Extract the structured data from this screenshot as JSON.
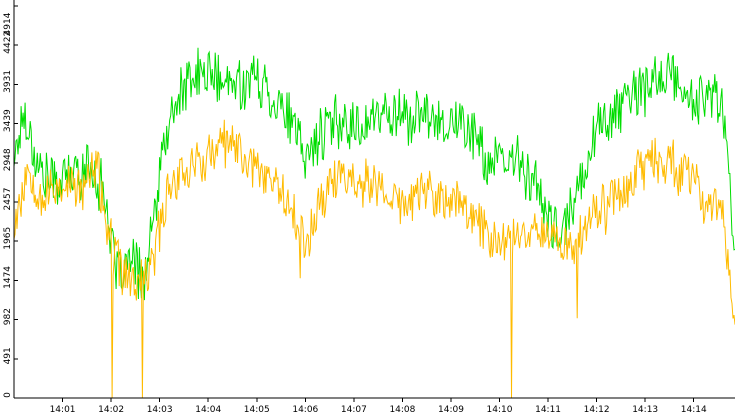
{
  "chart_data": {
    "type": "line",
    "title": "",
    "xlabel": "",
    "ylabel": "",
    "ylim": [
      0,
      4914
    ],
    "y_ticks": [
      0,
      491,
      982,
      1474,
      1965,
      2457,
      2948,
      3439,
      3931,
      4422,
      4914
    ],
    "x_range_minutes": [
      0,
      14.85
    ],
    "x_tick_labels": [
      "14:01",
      "14:02",
      "14:03",
      "14:04",
      "14:05",
      "14:06",
      "14:07",
      "14:08",
      "14:09",
      "14:10",
      "14:11",
      "14:12",
      "14:13",
      "14:14"
    ],
    "x_tick_values_minutes": [
      1,
      2,
      3,
      4,
      5,
      6,
      7,
      8,
      9,
      10,
      11,
      12,
      13,
      14
    ],
    "grid": false,
    "legend": "none",
    "samples_per_minute": 48,
    "series": [
      {
        "color": "#00dd00",
        "anchors": [
          [
            0.0,
            3000
          ],
          [
            0.2,
            3600
          ],
          [
            0.5,
            2900
          ],
          [
            0.8,
            2700
          ],
          [
            1.2,
            2800
          ],
          [
            1.6,
            2900
          ],
          [
            1.9,
            2500
          ],
          [
            2.1,
            1500
          ],
          [
            2.4,
            1700
          ],
          [
            2.7,
            1500
          ],
          [
            2.9,
            2300
          ],
          [
            3.1,
            3200
          ],
          [
            3.4,
            3800
          ],
          [
            3.7,
            4000
          ],
          [
            4.0,
            4100
          ],
          [
            4.3,
            3900
          ],
          [
            4.6,
            3950
          ],
          [
            5.0,
            4000
          ],
          [
            5.3,
            3800
          ],
          [
            5.6,
            3600
          ],
          [
            6.0,
            3000
          ],
          [
            6.3,
            3300
          ],
          [
            6.7,
            3500
          ],
          [
            7.0,
            3400
          ],
          [
            7.4,
            3500
          ],
          [
            7.8,
            3600
          ],
          [
            8.2,
            3500
          ],
          [
            8.6,
            3550
          ],
          [
            9.0,
            3450
          ],
          [
            9.4,
            3400
          ],
          [
            9.7,
            3000
          ],
          [
            10.0,
            2900
          ],
          [
            10.4,
            3000
          ],
          [
            10.8,
            2600
          ],
          [
            11.0,
            2200
          ],
          [
            11.3,
            2000
          ],
          [
            11.6,
            2600
          ],
          [
            12.0,
            3400
          ],
          [
            12.4,
            3600
          ],
          [
            12.8,
            3800
          ],
          [
            13.1,
            3900
          ],
          [
            13.4,
            4100
          ],
          [
            13.7,
            3900
          ],
          [
            14.0,
            3700
          ],
          [
            14.3,
            3800
          ],
          [
            14.6,
            3700
          ],
          [
            14.85,
            1800
          ]
        ],
        "noise": 300,
        "seed": 17
      },
      {
        "color": "#ffbb00",
        "anchors": [
          [
            0.0,
            2200
          ],
          [
            0.3,
            2900
          ],
          [
            0.6,
            2500
          ],
          [
            1.0,
            2700
          ],
          [
            1.4,
            2600
          ],
          [
            1.7,
            2900
          ],
          [
            2.0,
            1900
          ],
          [
            2.2,
            1600
          ],
          [
            2.5,
            1400
          ],
          [
            2.8,
            1600
          ],
          [
            3.0,
            2100
          ],
          [
            3.2,
            2700
          ],
          [
            3.6,
            2900
          ],
          [
            4.0,
            3000
          ],
          [
            4.4,
            3200
          ],
          [
            4.8,
            3000
          ],
          [
            5.2,
            2800
          ],
          [
            5.6,
            2600
          ],
          [
            6.0,
            1900
          ],
          [
            6.3,
            2500
          ],
          [
            6.7,
            2800
          ],
          [
            7.2,
            2700
          ],
          [
            7.6,
            2600
          ],
          [
            8.0,
            2400
          ],
          [
            8.4,
            2600
          ],
          [
            8.8,
            2500
          ],
          [
            9.2,
            2400
          ],
          [
            9.6,
            2200
          ],
          [
            10.0,
            1900
          ],
          [
            10.4,
            2100
          ],
          [
            10.8,
            2200
          ],
          [
            11.1,
            2000
          ],
          [
            11.5,
            1900
          ],
          [
            11.8,
            2200
          ],
          [
            12.2,
            2400
          ],
          [
            12.6,
            2700
          ],
          [
            13.0,
            2900
          ],
          [
            13.4,
            3000
          ],
          [
            13.8,
            2800
          ],
          [
            14.2,
            2500
          ],
          [
            14.6,
            2300
          ],
          [
            14.85,
            900
          ]
        ],
        "noise": 280,
        "dips": [
          [
            2.02,
            0
          ],
          [
            2.65,
            0
          ],
          [
            10.25,
            0
          ],
          [
            11.6,
            1000
          ],
          [
            5.9,
            1500
          ]
        ],
        "seed": 53
      }
    ]
  }
}
